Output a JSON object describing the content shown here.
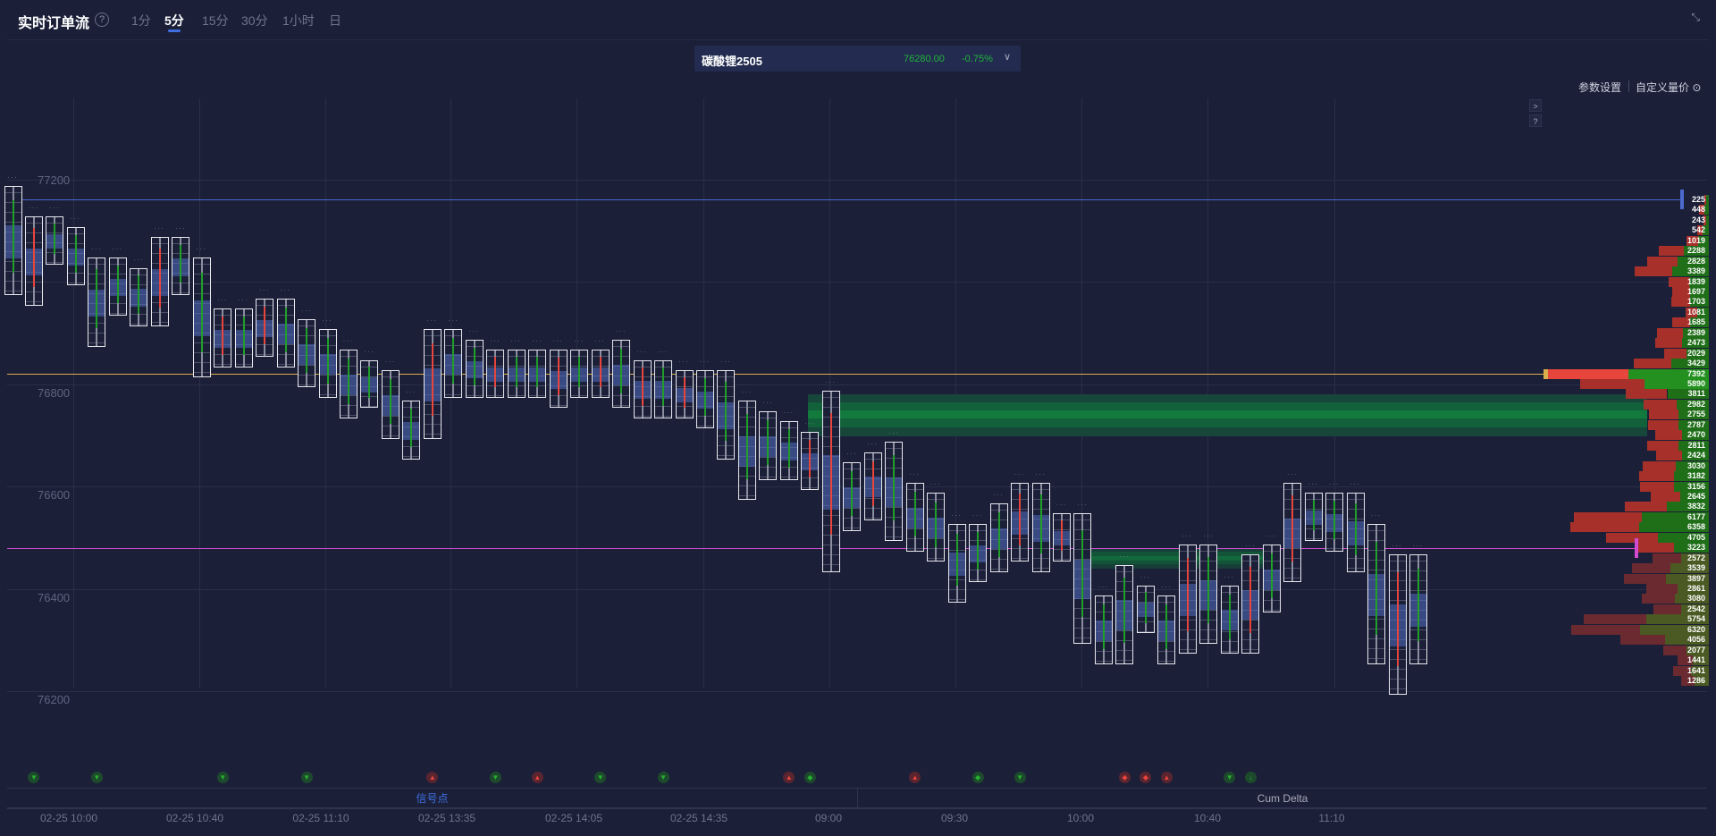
{
  "header": {
    "title": "实时订单流",
    "help": "?",
    "tabs": [
      {
        "label": "1分"
      },
      {
        "label": "5分",
        "active": true
      },
      {
        "label": "15分"
      },
      {
        "label": "30分"
      },
      {
        "label": "1小时"
      },
      {
        "label": "日"
      }
    ],
    "collapse": "⤡"
  },
  "instrument": {
    "name": "碳酸锂2505",
    "price": "76280.00",
    "change": "-0.75%",
    "caret": "∨"
  },
  "toolbar": {
    "params": "参数设置",
    "custom": "自定义量价 ⊙",
    "expand": ">",
    "help": "?"
  },
  "colors": {
    "up": "#20a02a",
    "down": "#e8453c",
    "accent": "#3f6fe0",
    "line_high": "#4a6ad0",
    "line_poc": "#d9b04c",
    "line_vwap": "#d04bd0"
  },
  "chart_data": {
    "type": "footprint",
    "y_ticks": [
      77200,
      76800,
      76600,
      76400,
      76200
    ],
    "ylim": [
      76160,
      77260
    ],
    "lines": [
      {
        "price": 77160,
        "color": "#4a6ad0"
      },
      {
        "price": 76820,
        "color": "#d9b04c"
      },
      {
        "price": 76480,
        "color": "#d04bd0"
      }
    ],
    "candles": [
      {
        "h": 77180,
        "l": 76980,
        "up": true
      },
      {
        "h": 77120,
        "l": 76960,
        "up": false
      },
      {
        "h": 77120,
        "l": 77040,
        "up": true
      },
      {
        "h": 77100,
        "l": 77000,
        "up": true
      },
      {
        "h": 77040,
        "l": 76880,
        "up": true
      },
      {
        "h": 77040,
        "l": 76940,
        "up": true
      },
      {
        "h": 77020,
        "l": 76920,
        "up": true
      },
      {
        "h": 77080,
        "l": 76920,
        "up": false
      },
      {
        "h": 77080,
        "l": 76980,
        "up": true
      },
      {
        "h": 77040,
        "l": 76820,
        "up": true
      },
      {
        "h": 76940,
        "l": 76840,
        "up": false
      },
      {
        "h": 76940,
        "l": 76840,
        "up": true
      },
      {
        "h": 76960,
        "l": 76860,
        "up": false
      },
      {
        "h": 76960,
        "l": 76840,
        "up": true
      },
      {
        "h": 76920,
        "l": 76800,
        "up": true
      },
      {
        "h": 76900,
        "l": 76780,
        "up": true
      },
      {
        "h": 76860,
        "l": 76740,
        "up": true
      },
      {
        "h": 76840,
        "l": 76760,
        "up": true
      },
      {
        "h": 76820,
        "l": 76700,
        "up": true
      },
      {
        "h": 76760,
        "l": 76660,
        "up": true
      },
      {
        "h": 76900,
        "l": 76700,
        "up": false
      },
      {
        "h": 76900,
        "l": 76780,
        "up": true
      },
      {
        "h": 76880,
        "l": 76780,
        "up": true
      },
      {
        "h": 76860,
        "l": 76780,
        "up": false
      },
      {
        "h": 76860,
        "l": 76780,
        "up": true
      },
      {
        "h": 76860,
        "l": 76780,
        "up": true
      },
      {
        "h": 76860,
        "l": 76760,
        "up": false
      },
      {
        "h": 76860,
        "l": 76780,
        "up": true
      },
      {
        "h": 76860,
        "l": 76780,
        "up": false
      },
      {
        "h": 76880,
        "l": 76760,
        "up": true
      },
      {
        "h": 76840,
        "l": 76740,
        "up": false
      },
      {
        "h": 76840,
        "l": 76740,
        "up": true
      },
      {
        "h": 76820,
        "l": 76740,
        "up": false
      },
      {
        "h": 76820,
        "l": 76720,
        "up": true
      },
      {
        "h": 76820,
        "l": 76660,
        "up": true
      },
      {
        "h": 76760,
        "l": 76580,
        "up": true
      },
      {
        "h": 76740,
        "l": 76620,
        "up": true
      },
      {
        "h": 76720,
        "l": 76620,
        "up": true
      },
      {
        "h": 76700,
        "l": 76600,
        "up": false
      },
      {
        "h": 76780,
        "l": 76440,
        "up": false
      },
      {
        "h": 76640,
        "l": 76520,
        "up": true
      },
      {
        "h": 76660,
        "l": 76540,
        "up": false
      },
      {
        "h": 76680,
        "l": 76500,
        "up": true
      },
      {
        "h": 76600,
        "l": 76480,
        "up": true
      },
      {
        "h": 76580,
        "l": 76460,
        "up": true
      },
      {
        "h": 76520,
        "l": 76380,
        "up": true
      },
      {
        "h": 76520,
        "l": 76420,
        "up": true
      },
      {
        "h": 76560,
        "l": 76440,
        "up": true
      },
      {
        "h": 76600,
        "l": 76460,
        "up": false
      },
      {
        "h": 76600,
        "l": 76440,
        "up": true
      },
      {
        "h": 76540,
        "l": 76460,
        "up": false
      },
      {
        "h": 76540,
        "l": 76300,
        "up": true
      },
      {
        "h": 76380,
        "l": 76260,
        "up": true
      },
      {
        "h": 76440,
        "l": 76260,
        "up": true
      },
      {
        "h": 76400,
        "l": 76320,
        "up": true
      },
      {
        "h": 76380,
        "l": 76260,
        "up": true
      },
      {
        "h": 76480,
        "l": 76280,
        "up": false
      },
      {
        "h": 76480,
        "l": 76300,
        "up": true
      },
      {
        "h": 76400,
        "l": 76280,
        "up": true
      },
      {
        "h": 76460,
        "l": 76280,
        "up": false
      },
      {
        "h": 76480,
        "l": 76360,
        "up": true
      },
      {
        "h": 76600,
        "l": 76420,
        "up": false
      },
      {
        "h": 76580,
        "l": 76500,
        "up": true
      },
      {
        "h": 76580,
        "l": 76480,
        "up": true
      },
      {
        "h": 76580,
        "l": 76440,
        "up": true
      },
      {
        "h": 76520,
        "l": 76260,
        "up": true
      },
      {
        "h": 76460,
        "l": 76200,
        "up": false
      },
      {
        "h": 76460,
        "l": 76260,
        "up": true
      }
    ],
    "volume_profile": {
      "top_price": 77160,
      "step": 20,
      "values": [
        225,
        448,
        243,
        542,
        1019,
        2288,
        2828,
        3389,
        1839,
        1697,
        1703,
        1081,
        1685,
        2389,
        2473,
        2029,
        3429,
        7392,
        5890,
        3811,
        2982,
        2755,
        2787,
        2470,
        2811,
        2424,
        3030,
        3182,
        3156,
        2645,
        3832,
        6177,
        6358,
        4705,
        3223,
        2572,
        3539,
        3897,
        2861,
        3080,
        2542,
        5754,
        6320,
        4056,
        2077,
        1441,
        1641,
        1286
      ]
    },
    "x_ticks": [
      "02-25 10:00",
      "02-25 10:40",
      "02-25 11:10",
      "02-25 13:35",
      "02-25 14:05",
      "02-25 14:35",
      "09:00",
      "09:30",
      "10:00",
      "10:40",
      "11:10"
    ],
    "signals": [
      {
        "c": 1,
        "t": "down"
      },
      {
        "c": 4,
        "t": "down"
      },
      {
        "c": 10,
        "t": "down"
      },
      {
        "c": 14,
        "t": "down"
      },
      {
        "c": 20,
        "t": "up"
      },
      {
        "c": 23,
        "t": "down"
      },
      {
        "c": 25,
        "t": "up"
      },
      {
        "c": 28,
        "t": "down"
      },
      {
        "c": 31,
        "t": "down"
      },
      {
        "c": 37,
        "t": "up"
      },
      {
        "c": 38,
        "t": "dot"
      },
      {
        "c": 43,
        "t": "up"
      },
      {
        "c": 46,
        "t": "dot"
      },
      {
        "c": 48,
        "t": "down"
      },
      {
        "c": 53,
        "t": "updot"
      },
      {
        "c": 54,
        "t": "updot"
      },
      {
        "c": 55,
        "t": "up"
      },
      {
        "c": 58,
        "t": "down"
      },
      {
        "c": 59,
        "t": "downarrow"
      }
    ]
  },
  "bottom_tabs": {
    "signals": "信号点",
    "cum_delta": "Cum Delta"
  }
}
